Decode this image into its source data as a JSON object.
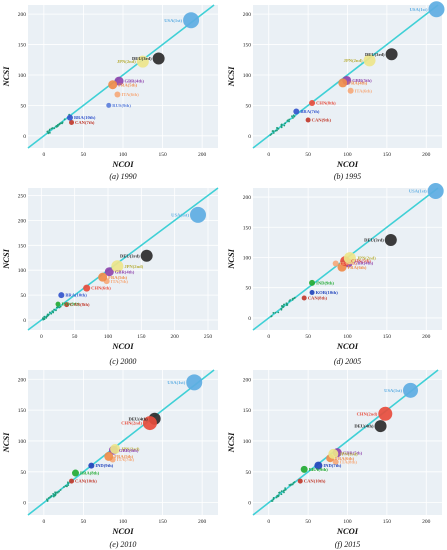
{
  "chart_data": [
    {
      "type": "scatter",
      "caption": "(a) 1990",
      "xlabel": "NCOI",
      "ylabel": "NCSI",
      "xlim": [
        -20,
        220
      ],
      "ylim": [
        -20,
        215
      ],
      "xticks": [
        0,
        50,
        100,
        150,
        200
      ],
      "yticks": [
        0,
        50,
        100,
        150,
        200
      ],
      "diagonal": true,
      "points": [
        {
          "label": "USA(1st)",
          "x": 186,
          "y": 190,
          "size": 8,
          "color": "#5dade2"
        },
        {
          "label": "DEU(3rd)",
          "x": 145,
          "y": 127,
          "size": 6,
          "color": "#2b2b2b"
        },
        {
          "label": "JPN(2nd)",
          "x": 125,
          "y": 122,
          "size": 6,
          "color": "#ede58a"
        },
        {
          "label": "GBR(4th)",
          "x": 95,
          "y": 90,
          "size": 4.5,
          "color": "#8e44ad"
        },
        {
          "label": "FRA(5th)",
          "x": 87,
          "y": 84,
          "size": 4.5,
          "color": "#ef8c4a"
        },
        {
          "label": "ITA(6th)",
          "x": 93,
          "y": 68,
          "size": 3,
          "color": "#f5a97a"
        },
        {
          "label": "RUS(9th)",
          "x": 82,
          "y": 50,
          "size": 2.5,
          "color": "#5b7fdb"
        },
        {
          "label": "BRA(10th)",
          "x": 33,
          "y": 30,
          "size": 3,
          "color": "#3355cc"
        },
        {
          "label": "CAN(7th)",
          "x": 35,
          "y": 22,
          "size": 2.5,
          "color": "#c0392b"
        }
      ]
    },
    {
      "type": "scatter",
      "caption": "(b) 1995",
      "xlabel": "NCOI",
      "ylabel": "NCSI",
      "xlim": [
        -20,
        220
      ],
      "ylim": [
        -20,
        215
      ],
      "xticks": [
        0,
        50,
        100,
        150,
        200
      ],
      "yticks": [
        0,
        50,
        100,
        150,
        200
      ],
      "diagonal": true,
      "points": [
        {
          "label": "USA(1st)",
          "x": 213,
          "y": 208,
          "size": 8,
          "color": "#5dade2"
        },
        {
          "label": "DEU(3rd)",
          "x": 156,
          "y": 134,
          "size": 6,
          "color": "#2b2b2b"
        },
        {
          "label": "JPN(2nd)",
          "x": 128,
          "y": 124,
          "size": 6,
          "color": "#ede58a"
        },
        {
          "label": "GBR(5th)",
          "x": 99,
          "y": 91,
          "size": 4.5,
          "color": "#8e44ad"
        },
        {
          "label": "FRA(4th)",
          "x": 94,
          "y": 87,
          "size": 4.5,
          "color": "#ef8c4a"
        },
        {
          "label": "ITA(6th)",
          "x": 104,
          "y": 74,
          "size": 3,
          "color": "#f5a97a"
        },
        {
          "label": "CHN(8th)",
          "x": 55,
          "y": 54,
          "size": 3,
          "color": "#e74c3c"
        },
        {
          "label": "BRA(7th)",
          "x": 35,
          "y": 40,
          "size": 3,
          "color": "#3355cc"
        },
        {
          "label": "CAN(9th)",
          "x": 50,
          "y": 26,
          "size": 2.5,
          "color": "#c0392b"
        }
      ]
    },
    {
      "type": "scatter",
      "caption": "(c) 2000",
      "xlabel": "NCOI",
      "ylabel": "NCSI",
      "xlim": [
        -20,
        265
      ],
      "ylim": [
        -20,
        265
      ],
      "xticks": [
        0,
        50,
        100,
        150,
        200,
        250
      ],
      "yticks": [
        0,
        50,
        100,
        150,
        200,
        250
      ],
      "diagonal": true,
      "points": [
        {
          "label": "USA(1st)",
          "x": 235,
          "y": 211,
          "size": 8,
          "color": "#5dade2"
        },
        {
          "label": "DEU(3rd)",
          "x": 158,
          "y": 129,
          "size": 6,
          "color": "#2b2b2b"
        },
        {
          "label": "JPN(2nd)",
          "x": 114,
          "y": 108,
          "size": 6,
          "color": "#ede58a"
        },
        {
          "label": "GBR(4th)",
          "x": 102,
          "y": 97,
          "size": 4.5,
          "color": "#8e44ad"
        },
        {
          "label": "FRA(5th)",
          "x": 92,
          "y": 86,
          "size": 4.5,
          "color": "#ef8c4a"
        },
        {
          "label": "ITA(7th)",
          "x": 98,
          "y": 78,
          "size": 3,
          "color": "#f5a97a"
        },
        {
          "label": "CHN(6th)",
          "x": 68,
          "y": 64,
          "size": 3.5,
          "color": "#e74c3c"
        },
        {
          "label": "BRA(10th)",
          "x": 30,
          "y": 50,
          "size": 3,
          "color": "#3355cc"
        },
        {
          "label": "IND(9th)",
          "x": 25,
          "y": 32,
          "size": 2.5,
          "color": "#22aa33"
        },
        {
          "label": "CAN(8th)",
          "x": 38,
          "y": 31,
          "size": 2.5,
          "color": "#c0392b"
        }
      ]
    },
    {
      "type": "scatter",
      "caption": "(d) 2005",
      "xlabel": "NCOI",
      "ylabel": "NCSI",
      "xlim": [
        -20,
        220
      ],
      "ylim": [
        -20,
        215
      ],
      "xticks": [
        0,
        50,
        100,
        150,
        200
      ],
      "yticks": [
        0,
        50,
        100,
        150,
        200
      ],
      "diagonal": true,
      "points": [
        {
          "label": "USA(1st)",
          "x": 212,
          "y": 210,
          "size": 8,
          "color": "#5dade2"
        },
        {
          "label": "DEU(3rd)",
          "x": 155,
          "y": 129,
          "size": 6,
          "color": "#2b2b2b"
        },
        {
          "label": "JPN(2nd)",
          "x": 103,
          "y": 99,
          "size": 6,
          "color": "#ede58a"
        },
        {
          "label": "CHN(5th)",
          "x": 97,
          "y": 94,
          "size": 5,
          "color": "#e74c3c"
        },
        {
          "label": "GBR(4th)",
          "x": 101,
          "y": 91,
          "size": 4.5,
          "color": "#8e44ad"
        },
        {
          "label": "ITA(7th)",
          "x": 85,
          "y": 90,
          "size": 3,
          "color": "#f5a97a"
        },
        {
          "label": "FRA(6th)",
          "x": 93,
          "y": 84,
          "size": 4.5,
          "color": "#ef8c4a"
        },
        {
          "label": "IND(9th)",
          "x": 55,
          "y": 58,
          "size": 3,
          "color": "#22aa33"
        },
        {
          "label": "KOR(10th)",
          "x": 55,
          "y": 42,
          "size": 2.5,
          "color": "#2244bb"
        },
        {
          "label": "CAN(8th)",
          "x": 45,
          "y": 33,
          "size": 2.5,
          "color": "#c0392b"
        }
      ]
    },
    {
      "type": "scatter",
      "caption": "(e) 2010",
      "xlabel": "NCOI",
      "ylabel": "NCSI",
      "xlim": [
        -20,
        220
      ],
      "ylim": [
        -20,
        215
      ],
      "xticks": [
        0,
        50,
        100,
        150,
        200
      ],
      "yticks": [
        0,
        50,
        100,
        150,
        200
      ],
      "diagonal": true,
      "points": [
        {
          "label": "USA(1st)",
          "x": 190,
          "y": 195,
          "size": 8,
          "color": "#5dade2"
        },
        {
          "label": "DEU(4th)",
          "x": 140,
          "y": 136,
          "size": 6,
          "color": "#2b2b2b"
        },
        {
          "label": "CHN(2nd)",
          "x": 134,
          "y": 129,
          "size": 7,
          "color": "#e74c3c"
        },
        {
          "label": "JPN(3rd)",
          "x": 90,
          "y": 87,
          "size": 5,
          "color": "#ede58a"
        },
        {
          "label": "GBR(6th)",
          "x": 88,
          "y": 85,
          "size": 4.5,
          "color": "#8e44ad"
        },
        {
          "label": "FRA(5th)",
          "x": 82,
          "y": 75,
          "size": 4.5,
          "color": "#ef8c4a"
        },
        {
          "label": "ITA(7th)",
          "x": 87,
          "y": 70,
          "size": 3,
          "color": "#f5a97a"
        },
        {
          "label": "IND(9th)",
          "x": 60,
          "y": 60,
          "size": 3,
          "color": "#2244bb"
        },
        {
          "label": "BRA(8th)",
          "x": 40,
          "y": 48,
          "size": 3.5,
          "color": "#22aa33"
        },
        {
          "label": "CAN(10th)",
          "x": 35,
          "y": 35,
          "size": 2.5,
          "color": "#c0392b"
        }
      ]
    },
    {
      "type": "scatter",
      "caption": "(f) 2015",
      "xlabel": "NCOI",
      "ylabel": "NCSI",
      "xlim": [
        -20,
        220
      ],
      "ylim": [
        -20,
        215
      ],
      "xticks": [
        0,
        50,
        100,
        150,
        200
      ],
      "yticks": [
        0,
        50,
        100,
        150,
        200
      ],
      "diagonal": true,
      "points": [
        {
          "label": "USA(1st)",
          "x": 180,
          "y": 182,
          "size": 7.5,
          "color": "#5dade2"
        },
        {
          "label": "CHN(2nd)",
          "x": 148,
          "y": 144,
          "size": 7,
          "color": "#e74c3c"
        },
        {
          "label": "DEU(4th)",
          "x": 142,
          "y": 124,
          "size": 6,
          "color": "#2b2b2b"
        },
        {
          "label": "GBR(5th)",
          "x": 87,
          "y": 81,
          "size": 4.5,
          "color": "#8e44ad"
        },
        {
          "label": "JPN(3rd)",
          "x": 82,
          "y": 79,
          "size": 5,
          "color": "#ede58a"
        },
        {
          "label": "FRA(6th)",
          "x": 78,
          "y": 72,
          "size": 4,
          "color": "#ef8c4a"
        },
        {
          "label": "ITA(8th)",
          "x": 85,
          "y": 66,
          "size": 3,
          "color": "#f5a97a"
        },
        {
          "label": "IND(7th)",
          "x": 63,
          "y": 60,
          "size": 4,
          "color": "#2244bb"
        },
        {
          "label": "BRA(9th)",
          "x": 45,
          "y": 54,
          "size": 3.5,
          "color": "#22aa33"
        },
        {
          "label": "CAN(10th)",
          "x": 40,
          "y": 35,
          "size": 2.5,
          "color": "#c0392b"
        }
      ]
    }
  ]
}
